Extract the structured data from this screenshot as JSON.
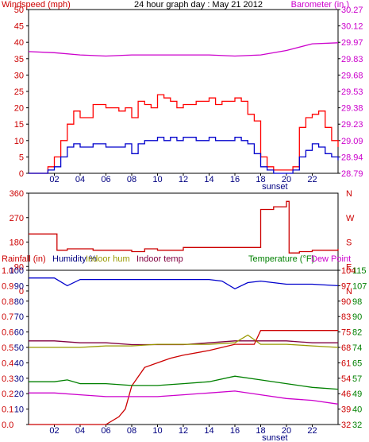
{
  "colors": {
    "frame": "#000000",
    "wind": "#ff0000",
    "gust_line": "#ff0000",
    "avg_line": "#0000cc",
    "baro": "#cc00cc",
    "winddir": "#cc0000",
    "humidity": "#0000cc",
    "indoor_hum": "#999900",
    "indoor_temp": "#800040",
    "temperature": "#008000",
    "dewpoint": "#cc00cc",
    "rain": "#cc0000",
    "label_red": "#cc0000",
    "label_green": "#008000",
    "label_magenta": "#cc00cc",
    "label_blue": "#000080"
  },
  "chart_data": [
    {
      "type": "line",
      "title": "24 hour graph day : May 21 2012",
      "left_axis_label": "Windspeed (mph)",
      "right_axis_label": "Barometer (in.)",
      "x_ticks": [
        "02",
        "04",
        "06",
        "08",
        "10",
        "12",
        "14",
        "16",
        "18",
        "20",
        "22"
      ],
      "x_marker": "sunset",
      "y_left_ticks": [
        "0",
        "5",
        "10",
        "15",
        "20",
        "25",
        "30",
        "35",
        "40",
        "45",
        "50"
      ],
      "y_right_ticks": [
        "28.79",
        "28.94",
        "29.09",
        "29.23",
        "29.38",
        "29.53",
        "29.68",
        "29.83",
        "29.97",
        "30.12",
        "30.27"
      ],
      "ylim_left": [
        0,
        50
      ],
      "ylim_right": [
        28.79,
        30.27
      ],
      "x_range": [
        0,
        24
      ],
      "series": [
        {
          "color_key": "gust_line",
          "axis": "left",
          "x": [
            0,
            1,
            1.5,
            2,
            2.5,
            3,
            3.5,
            4,
            5,
            6,
            7,
            7.5,
            8,
            8.5,
            9,
            9.5,
            10,
            10.5,
            11,
            11.5,
            12,
            13,
            14,
            14.5,
            15,
            16,
            16.5,
            17,
            17.5,
            18,
            18.5,
            19,
            20,
            20.5,
            21,
            21.5,
            22,
            22.5,
            23,
            23.5,
            24
          ],
          "y": [
            0,
            0,
            2,
            5,
            10,
            15,
            19,
            17,
            21,
            20,
            19,
            20,
            17,
            22,
            21,
            20,
            24,
            23,
            22,
            20,
            21,
            22,
            23,
            21,
            22,
            23,
            22,
            18,
            16,
            5,
            2,
            1,
            1,
            2,
            14,
            17,
            18,
            19,
            14,
            10,
            8
          ]
        },
        {
          "color_key": "avg_line",
          "axis": "left",
          "x": [
            0,
            1,
            1.5,
            2,
            2.5,
            3,
            3.5,
            4,
            5,
            6,
            7,
            7.5,
            8,
            8.5,
            9,
            9.5,
            10,
            10.5,
            11,
            11.5,
            12,
            13,
            14,
            14.5,
            15,
            16,
            16.5,
            17,
            17.5,
            18,
            18.5,
            19,
            20,
            20.5,
            21,
            21.5,
            22,
            22.5,
            23,
            23.5,
            24
          ],
          "y": [
            0,
            0,
            1,
            2,
            5,
            8,
            9,
            8,
            9,
            8,
            8,
            9,
            6,
            9,
            10,
            10,
            11,
            10,
            11,
            10,
            11,
            10,
            11,
            10,
            10,
            11,
            10,
            9,
            6,
            2,
            1,
            0,
            0,
            1,
            5,
            7,
            9,
            8,
            6,
            5,
            4
          ]
        },
        {
          "color_key": "baro",
          "axis": "right",
          "x": [
            0,
            2,
            4,
            6,
            8,
            10,
            12,
            14,
            16,
            18,
            20,
            22,
            24
          ],
          "y": [
            29.89,
            29.88,
            29.86,
            29.85,
            29.86,
            29.86,
            29.86,
            29.86,
            29.85,
            29.86,
            29.9,
            29.96,
            29.97
          ]
        }
      ]
    },
    {
      "type": "scatter",
      "title": "",
      "y_left_ticks": [
        "0",
        "90",
        "180",
        "270",
        "360"
      ],
      "y_right_ticks": [
        "N",
        "E",
        "S",
        "W",
        "N"
      ],
      "ylim": [
        0,
        360
      ],
      "x_range": [
        0,
        24
      ],
      "series": [
        {
          "color_key": "winddir",
          "x": [
            0,
            2,
            2.2,
            3,
            5,
            7,
            8,
            9,
            10,
            12,
            14,
            16,
            17.8,
            18,
            19,
            20,
            20.2,
            21,
            22,
            23,
            24
          ],
          "y": [
            210,
            210,
            150,
            155,
            150,
            150,
            145,
            155,
            150,
            160,
            160,
            160,
            160,
            300,
            310,
            330,
            140,
            145,
            150,
            150,
            155
          ]
        }
      ]
    },
    {
      "type": "line",
      "title": "",
      "legend": [
        "Rainfall (in)",
        "Humidity %",
        "Indoor hum",
        "Indoor temp",
        "Temperature (°F)",
        "Dew Point"
      ],
      "x_ticks": [
        "02",
        "04",
        "06",
        "08",
        "10",
        "12",
        "14",
        "16",
        "18",
        "20",
        "22"
      ],
      "x_marker": "sunset",
      "y_rain_ticks": [
        "0.0",
        "0.1",
        "0.2",
        "0.3",
        "0.4",
        "0.5",
        "0.6",
        "0.7",
        "0.8",
        "0.9",
        "1.0"
      ],
      "y_hum_ticks": [
        "10",
        "20",
        "30",
        "40",
        "50",
        "60",
        "70",
        "80",
        "90",
        "100"
      ],
      "y_temp_ticks_inner": [
        "32",
        "39",
        "46",
        "54",
        "61",
        "68",
        "75",
        "83",
        "90",
        "97",
        "104"
      ],
      "y_temp_ticks_outer": [
        "32",
        "40",
        "49",
        "57",
        "65",
        "74",
        "82",
        "90",
        "98",
        "107",
        "115"
      ],
      "ylim_rain": [
        0,
        1.0
      ],
      "ylim_temp": [
        32,
        115
      ],
      "x_range": [
        0,
        24
      ],
      "series": [
        {
          "name": "Humidity %",
          "color_key": "humidity",
          "axis": "hum",
          "x": [
            0,
            2,
            3,
            4,
            6,
            8,
            10,
            12,
            14,
            15,
            16,
            17,
            18,
            20,
            22,
            24
          ],
          "y": [
            95,
            95,
            90,
            94,
            94,
            94,
            94,
            94,
            94,
            93,
            88,
            92,
            93,
            91,
            91,
            90
          ]
        },
        {
          "name": "Indoor temp",
          "color_key": "indoor_temp",
          "axis": "temp",
          "x": [
            0,
            2,
            4,
            6,
            8,
            10,
            12,
            14,
            16,
            18,
            20,
            22,
            24
          ],
          "y": [
            77,
            77,
            76,
            76,
            75,
            75,
            75,
            76,
            77,
            77,
            77,
            76,
            76
          ]
        },
        {
          "name": "Indoor hum",
          "color_key": "indoor_hum",
          "axis": "hum",
          "x": [
            0,
            2,
            4,
            6,
            8,
            10,
            12,
            14,
            16,
            17,
            18,
            20,
            22,
            24
          ],
          "y": [
            50,
            50,
            50,
            51,
            51,
            52,
            52,
            52,
            53,
            58,
            52,
            52,
            51,
            50
          ]
        },
        {
          "name": "Rainfall (in)",
          "color_key": "rain",
          "axis": "rain",
          "x": [
            0,
            6,
            7,
            7.5,
            8,
            9,
            10,
            11,
            12,
            14,
            16,
            17.5,
            18,
            19,
            20,
            24
          ],
          "y": [
            0.0,
            0.0,
            0.05,
            0.1,
            0.25,
            0.37,
            0.4,
            0.43,
            0.45,
            0.48,
            0.52,
            0.52,
            0.61,
            0.61,
            0.61,
            0.61
          ]
        },
        {
          "name": "Temperature (°F)",
          "color_key": "temperature",
          "axis": "temp",
          "x": [
            0,
            2,
            3,
            4,
            6,
            8,
            10,
            12,
            14,
            16,
            18,
            20,
            22,
            24
          ],
          "y": [
            55,
            55,
            56,
            54,
            54,
            53,
            53,
            54,
            55,
            58,
            56,
            54,
            52,
            51
          ]
        },
        {
          "name": "Dew Point",
          "color_key": "dewpoint",
          "axis": "temp",
          "x": [
            0,
            2,
            4,
            6,
            8,
            10,
            12,
            14,
            16,
            18,
            20,
            22,
            24
          ],
          "y": [
            49,
            49,
            48,
            47,
            47,
            47,
            48,
            49,
            50,
            48,
            46,
            45,
            43
          ]
        }
      ]
    }
  ]
}
